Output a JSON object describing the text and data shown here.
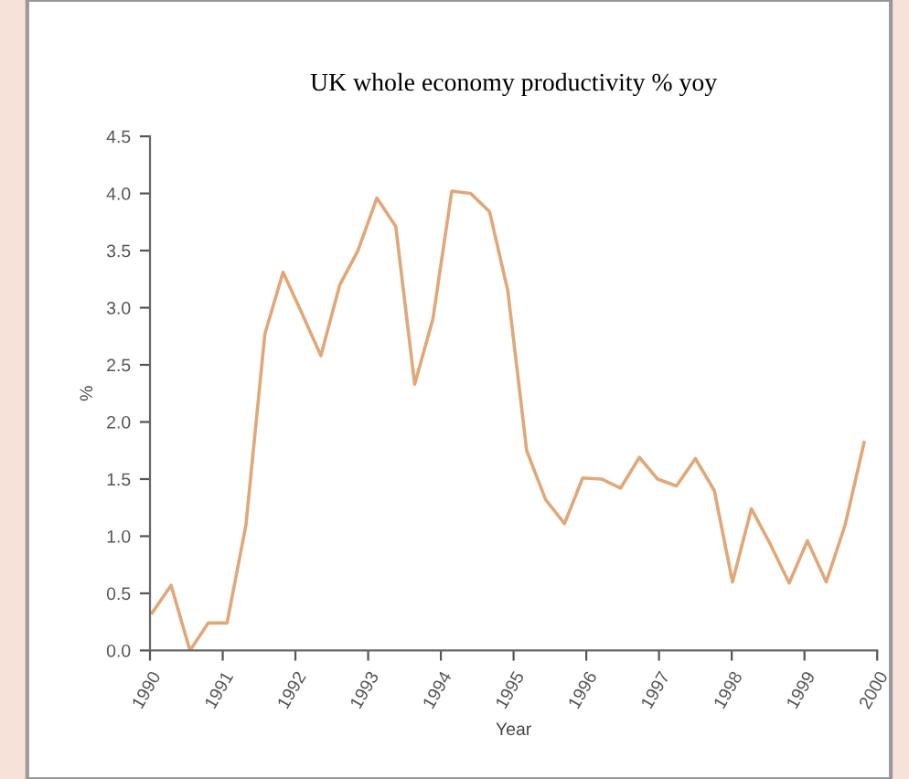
{
  "chart_data": {
    "type": "line",
    "title": "UK whole economy productivity % yoy",
    "xlabel": "Year",
    "ylabel": "%",
    "x": [
      1990.03,
      1990.29,
      1990.55,
      1990.8,
      1991.06,
      1991.32,
      1991.58,
      1991.83,
      1992.09,
      1992.35,
      1992.61,
      1992.86,
      1993.12,
      1993.38,
      1993.64,
      1993.89,
      1994.15,
      1994.41,
      1994.67,
      1994.92,
      1995.18,
      1995.44,
      1995.7,
      1995.95,
      1996.21,
      1996.47,
      1996.73,
      1996.98,
      1997.24,
      1997.5,
      1997.76,
      1998.01,
      1998.27,
      1998.53,
      1998.79,
      1999.04,
      1999.3,
      1999.56,
      1999.82
    ],
    "series": [
      {
        "color": "#e0a878",
        "values": [
          0.33,
          0.57,
          0.0,
          0.24,
          0.24,
          1.1,
          2.77,
          3.31,
          2.95,
          2.58,
          3.2,
          3.5,
          3.96,
          3.71,
          2.33,
          2.9,
          4.02,
          4.0,
          3.84,
          3.15,
          1.75,
          1.32,
          1.11,
          1.51,
          1.5,
          1.42,
          1.69,
          1.5,
          1.44,
          1.68,
          1.4,
          0.6,
          1.24,
          0.93,
          0.59,
          0.96,
          0.6,
          1.1,
          1.82
        ]
      }
    ],
    "xlim": [
      1990,
      2000
    ],
    "xticks": [
      1990,
      1991,
      1992,
      1993,
      1994,
      1995,
      1996,
      1997,
      1998,
      1999,
      2000
    ],
    "ylim": [
      0,
      4.5
    ],
    "yticks": [
      {
        "value": 0,
        "label": "0.0"
      },
      {
        "value": 0.5,
        "label": "0.5"
      },
      {
        "value": 1,
        "label": "1.0"
      },
      {
        "value": 1.5,
        "label": "1.5"
      },
      {
        "value": 2,
        "label": "2.0"
      },
      {
        "value": 2.5,
        "label": "2.5"
      },
      {
        "value": 3,
        "label": "3.0"
      },
      {
        "value": 3.5,
        "label": "3.5"
      },
      {
        "value": 4,
        "label": "4.0"
      },
      {
        "value": 4.5,
        "label": "4.5"
      }
    ],
    "grid": false,
    "legend": false,
    "marker": "none",
    "line_style": "solid"
  }
}
